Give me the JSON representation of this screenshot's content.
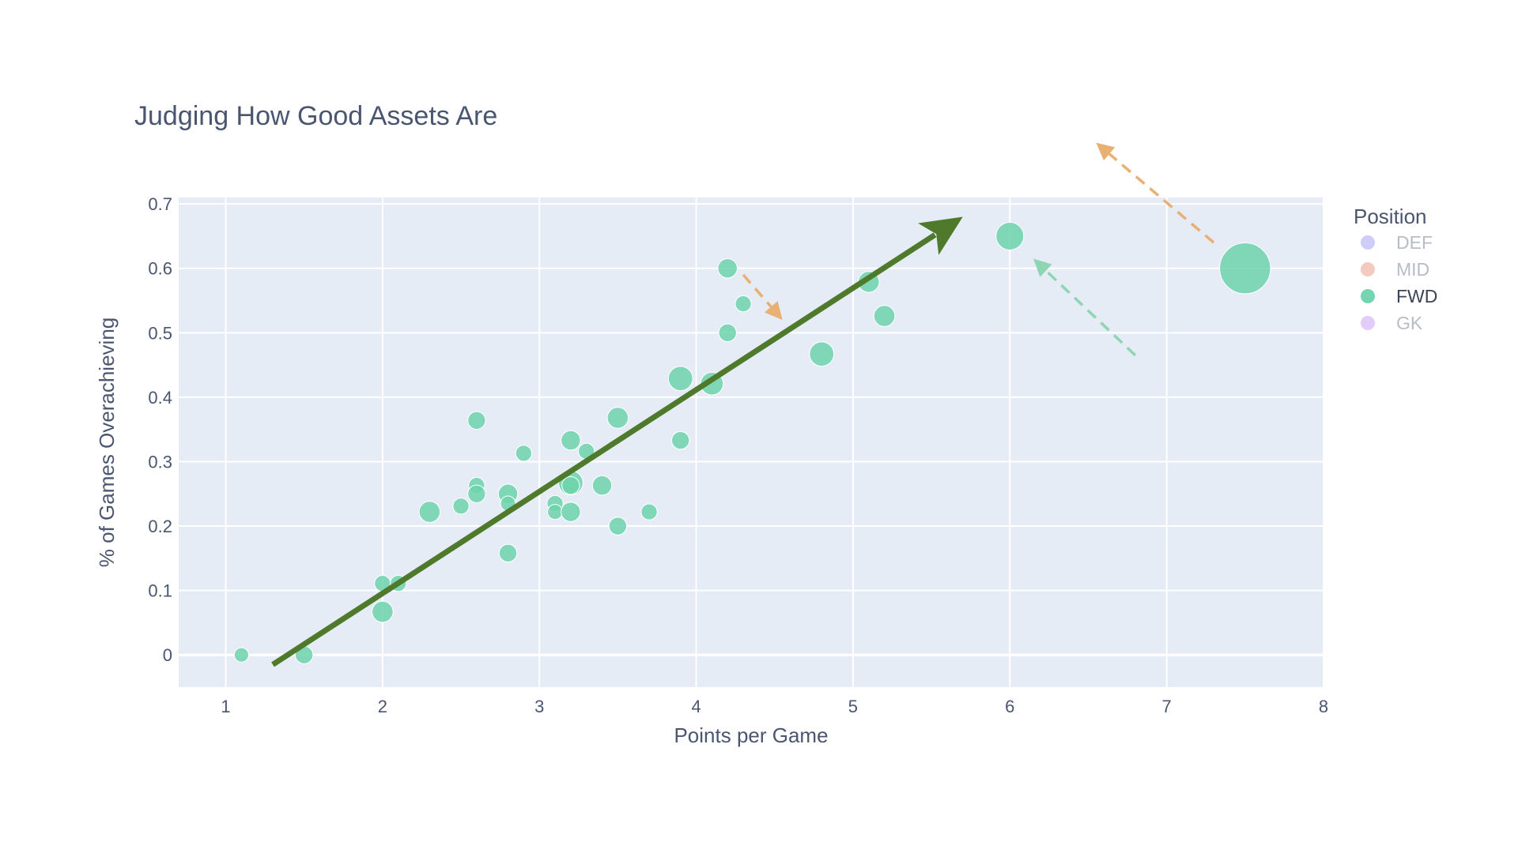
{
  "chart_data": {
    "type": "scatter",
    "title": "Judging How Good Assets Are",
    "xlabel": "Points per Game",
    "ylabel": "% of Games Overachieving",
    "xlim": [
      0.7,
      8.0
    ],
    "ylim": [
      -0.05,
      0.71
    ],
    "xticks": [
      "1",
      "2",
      "3",
      "4",
      "5",
      "6",
      "7",
      "8"
    ],
    "yticks": [
      "0",
      "0.1",
      "0.2",
      "0.3",
      "0.4",
      "0.5",
      "0.6",
      "0.7"
    ],
    "grid": true,
    "legend": {
      "title": "Position",
      "placement": "right",
      "items": [
        {
          "label": "DEF",
          "color": "#b9b6f6",
          "active": false
        },
        {
          "label": "MID",
          "color": "#f0b4a2",
          "active": false
        },
        {
          "label": "FWD",
          "color": "#6dd3ac",
          "active": true
        },
        {
          "label": "GK",
          "color": "#d6b6f7",
          "active": false
        }
      ]
    },
    "series": [
      {
        "name": "FWD",
        "color": "#6dd3ac",
        "points": [
          {
            "x": 1.1,
            "y": 0.0,
            "s": 1
          },
          {
            "x": 1.5,
            "y": 0.0,
            "s": 2
          },
          {
            "x": 2.0,
            "y": 0.111,
            "s": 1.5
          },
          {
            "x": 2.1,
            "y": 0.111,
            "s": 1.5
          },
          {
            "x": 2.0,
            "y": 0.067,
            "s": 3
          },
          {
            "x": 2.3,
            "y": 0.222,
            "s": 3
          },
          {
            "x": 2.5,
            "y": 0.231,
            "s": 1.5
          },
          {
            "x": 2.6,
            "y": 0.364,
            "s": 2
          },
          {
            "x": 2.6,
            "y": 0.263,
            "s": 1.5
          },
          {
            "x": 2.6,
            "y": 0.25,
            "s": 2
          },
          {
            "x": 2.8,
            "y": 0.25,
            "s": 2.5
          },
          {
            "x": 2.8,
            "y": 0.235,
            "s": 1.2
          },
          {
            "x": 2.8,
            "y": 0.158,
            "s": 2
          },
          {
            "x": 2.9,
            "y": 0.313,
            "s": 1.5
          },
          {
            "x": 3.1,
            "y": 0.235,
            "s": 1.5
          },
          {
            "x": 3.1,
            "y": 0.222,
            "s": 1.2
          },
          {
            "x": 3.2,
            "y": 0.333,
            "s": 2.5
          },
          {
            "x": 3.2,
            "y": 0.267,
            "s": 4
          },
          {
            "x": 3.2,
            "y": 0.263,
            "s": 2
          },
          {
            "x": 3.2,
            "y": 0.222,
            "s": 2.5
          },
          {
            "x": 3.3,
            "y": 0.316,
            "s": 1.5
          },
          {
            "x": 3.4,
            "y": 0.263,
            "s": 2.5
          },
          {
            "x": 3.5,
            "y": 0.368,
            "s": 3
          },
          {
            "x": 3.5,
            "y": 0.2,
            "s": 2
          },
          {
            "x": 3.7,
            "y": 0.222,
            "s": 1.5
          },
          {
            "x": 3.9,
            "y": 0.429,
            "s": 4
          },
          {
            "x": 3.9,
            "y": 0.333,
            "s": 2
          },
          {
            "x": 4.1,
            "y": 0.421,
            "s": 3.5
          },
          {
            "x": 4.2,
            "y": 0.6,
            "s": 2.5
          },
          {
            "x": 4.2,
            "y": 0.5,
            "s": 2
          },
          {
            "x": 4.3,
            "y": 0.545,
            "s": 1.5
          },
          {
            "x": 4.8,
            "y": 0.467,
            "s": 4
          },
          {
            "x": 5.1,
            "y": 0.579,
            "s": 3
          },
          {
            "x": 5.2,
            "y": 0.526,
            "s": 3
          },
          {
            "x": 6.0,
            "y": 0.65,
            "s": 5
          },
          {
            "x": 7.5,
            "y": 0.6,
            "s": 12
          }
        ]
      }
    ],
    "annotations": [
      {
        "kind": "trend-arrow",
        "color": "#4f7a2b",
        "from": [
          1.3,
          -0.015
        ],
        "to": [
          5.7,
          0.68
        ]
      },
      {
        "kind": "dashed-arrow",
        "color": "#e8b072",
        "from": [
          4.3,
          0.59
        ],
        "to": [
          4.55,
          0.52
        ]
      },
      {
        "kind": "dashed-arrow",
        "color": "#e8b072",
        "from": [
          7.3,
          0.64
        ],
        "to": [
          6.55,
          0.795
        ]
      },
      {
        "kind": "dashed-arrow",
        "color": "#8ed5b2",
        "from": [
          6.8,
          0.465
        ],
        "to": [
          6.15,
          0.615
        ]
      }
    ]
  }
}
